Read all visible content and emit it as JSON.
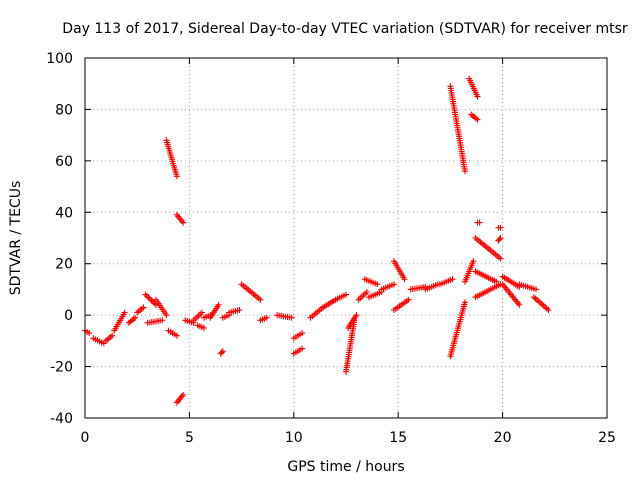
{
  "chart_data": {
    "type": "scatter",
    "title": "Day 113 of 2017, Sidereal Day-to-day VTEC variation (SDTVAR) for receiver mtsr",
    "xlabel": "GPS time / hours",
    "ylabel": "SDTVAR / TECUs",
    "xlim": [
      0,
      25
    ],
    "ylim": [
      -40,
      100
    ],
    "xticks": [
      "0",
      "5",
      "10",
      "15",
      "20",
      "25"
    ],
    "yticks": [
      "-40",
      "-20",
      "0",
      "20",
      "40",
      "60",
      "80",
      "100"
    ],
    "grid": true,
    "marker": "+",
    "color": "#ff0000",
    "segments": [
      {
        "x": [
          0.0,
          0.2
        ],
        "y": [
          -6,
          -7
        ]
      },
      {
        "x": [
          0.4,
          0.9
        ],
        "y": [
          -9,
          -11
        ]
      },
      {
        "x": [
          1.0,
          1.3
        ],
        "y": [
          -10,
          -8
        ]
      },
      {
        "x": [
          1.4,
          1.9
        ],
        "y": [
          -6,
          1
        ]
      },
      {
        "x": [
          2.1,
          2.4
        ],
        "y": [
          -3,
          -1
        ]
      },
      {
        "x": [
          2.5,
          2.8
        ],
        "y": [
          1,
          3
        ]
      },
      {
        "x": [
          2.9,
          3.4
        ],
        "y": [
          8,
          4
        ]
      },
      {
        "x": [
          3.0,
          3.7
        ],
        "y": [
          -3,
          -2
        ]
      },
      {
        "x": [
          3.4,
          3.9
        ],
        "y": [
          6,
          0
        ]
      },
      {
        "x": [
          4.0,
          4.4
        ],
        "y": [
          -6,
          -8
        ]
      },
      {
        "x": [
          3.9,
          4.4
        ],
        "y": [
          68,
          54
        ]
      },
      {
        "x": [
          4.4,
          4.7
        ],
        "y": [
          39,
          36
        ]
      },
      {
        "x": [
          4.4,
          4.7
        ],
        "y": [
          -34,
          -31
        ]
      },
      {
        "x": [
          4.8,
          5.2
        ],
        "y": [
          -2,
          -3
        ]
      },
      {
        "x": [
          5.2,
          5.6
        ],
        "y": [
          -2,
          1
        ]
      },
      {
        "x": [
          5.4,
          5.7
        ],
        "y": [
          -4,
          -5
        ]
      },
      {
        "x": [
          5.7,
          6.0
        ],
        "y": [
          -1,
          0
        ]
      },
      {
        "x": [
          6.0,
          6.4
        ],
        "y": [
          -1,
          4
        ]
      },
      {
        "x": [
          6.5,
          6.6
        ],
        "y": [
          -15,
          -14
        ]
      },
      {
        "x": [
          6.6,
          6.9
        ],
        "y": [
          -1,
          0
        ]
      },
      {
        "x": [
          6.9,
          7.4
        ],
        "y": [
          1,
          2
        ]
      },
      {
        "x": [
          7.5,
          8.4
        ],
        "y": [
          12,
          6
        ]
      },
      {
        "x": [
          8.4,
          8.7
        ],
        "y": [
          -2,
          -1
        ]
      },
      {
        "x": [
          9.2,
          9.9
        ],
        "y": [
          0,
          -1
        ]
      },
      {
        "x": [
          10.0,
          10.4
        ],
        "y": [
          -9,
          -7
        ]
      },
      {
        "x": [
          10.0,
          10.4
        ],
        "y": [
          -15,
          -13
        ]
      },
      {
        "x": [
          10.8,
          11.4
        ],
        "y": [
          -1,
          3
        ]
      },
      {
        "x": [
          11.4,
          12.0
        ],
        "y": [
          3,
          6
        ]
      },
      {
        "x": [
          12.0,
          12.5
        ],
        "y": [
          6,
          8
        ]
      },
      {
        "x": [
          12.5,
          12.9
        ],
        "y": [
          -22,
          -2
        ]
      },
      {
        "x": [
          12.6,
          13.0
        ],
        "y": [
          -5,
          0
        ]
      },
      {
        "x": [
          13.1,
          13.5
        ],
        "y": [
          6,
          9
        ]
      },
      {
        "x": [
          13.4,
          14.0
        ],
        "y": [
          14,
          12
        ]
      },
      {
        "x": [
          13.6,
          14.2
        ],
        "y": [
          7,
          9
        ]
      },
      {
        "x": [
          14.2,
          14.8
        ],
        "y": [
          10,
          12
        ]
      },
      {
        "x": [
          14.8,
          15.3
        ],
        "y": [
          21,
          14
        ]
      },
      {
        "x": [
          14.8,
          15.5
        ],
        "y": [
          2,
          6
        ]
      },
      {
        "x": [
          15.6,
          16.3
        ],
        "y": [
          10,
          11
        ]
      },
      {
        "x": [
          16.3,
          16.9
        ],
        "y": [
          10,
          12
        ]
      },
      {
        "x": [
          17.0,
          17.6
        ],
        "y": [
          12,
          14
        ]
      },
      {
        "x": [
          17.5,
          18.2
        ],
        "y": [
          89,
          56
        ]
      },
      {
        "x": [
          17.5,
          18.2
        ],
        "y": [
          -16,
          5
        ]
      },
      {
        "x": [
          18.2,
          18.6
        ],
        "y": [
          13,
          21
        ]
      },
      {
        "x": [
          18.4,
          18.8
        ],
        "y": [
          92,
          85
        ]
      },
      {
        "x": [
          18.5,
          18.8
        ],
        "y": [
          78,
          76
        ]
      },
      {
        "x": [
          18.8,
          18.9
        ],
        "y": [
          36,
          36
        ]
      },
      {
        "x": [
          18.7,
          19.9
        ],
        "y": [
          30,
          22
        ]
      },
      {
        "x": [
          18.7,
          19.7
        ],
        "y": [
          17,
          13
        ]
      },
      {
        "x": [
          18.7,
          19.9
        ],
        "y": [
          7,
          12
        ]
      },
      {
        "x": [
          19.8,
          19.9
        ],
        "y": [
          34,
          34
        ]
      },
      {
        "x": [
          19.8,
          19.9
        ],
        "y": [
          29,
          30
        ]
      },
      {
        "x": [
          20.0,
          20.8
        ],
        "y": [
          15,
          11
        ]
      },
      {
        "x": [
          20.0,
          20.8
        ],
        "y": [
          12,
          4
        ]
      },
      {
        "x": [
          20.8,
          21.6
        ],
        "y": [
          12,
          10
        ]
      },
      {
        "x": [
          21.5,
          22.2
        ],
        "y": [
          7,
          2
        ]
      }
    ]
  }
}
